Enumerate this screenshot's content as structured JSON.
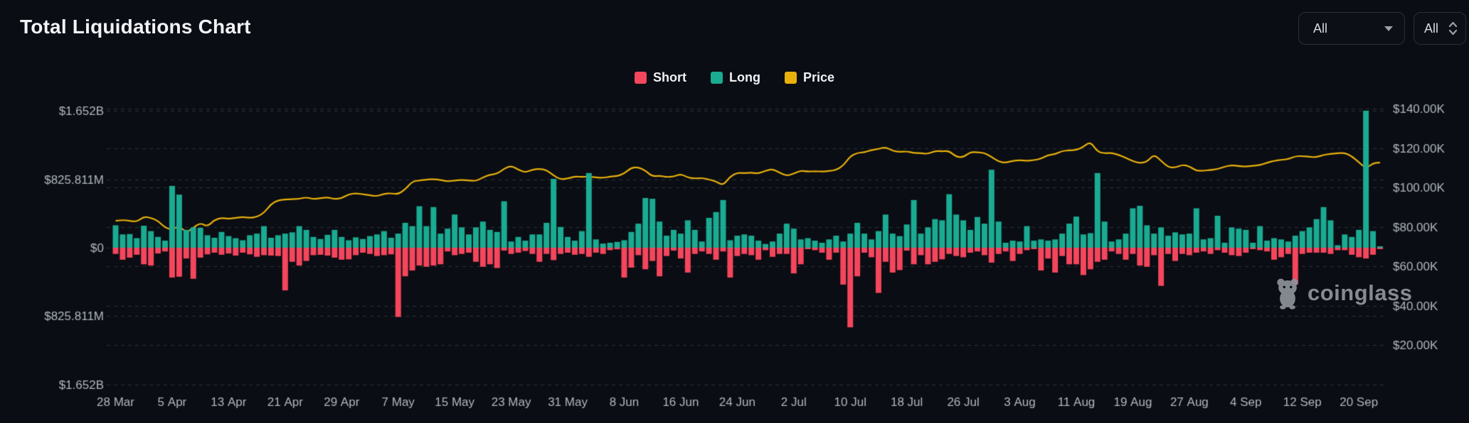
{
  "header": {
    "title": "Total Liquidations Chart"
  },
  "filters": {
    "pair": {
      "value": "All"
    },
    "exchange": {
      "value": "All"
    }
  },
  "legend": [
    {
      "label": "Short",
      "color": "#f4465d"
    },
    {
      "label": "Long",
      "color": "#1aab92"
    },
    {
      "label": "Price",
      "color": "#e9b10c"
    }
  ],
  "watermark": {
    "text": "coinglass"
  },
  "chart_data": {
    "type": "bar",
    "title": "Total Liquidations Chart",
    "subtype": "diverging bars with overlay line",
    "grid": "dashed horizontal, both axes",
    "legend_position": "top-center",
    "x_start_label": "28 Mar",
    "x_tick_every_days": 8,
    "x_tick_labels": [
      "28 Mar",
      "5 Apr",
      "13 Apr",
      "21 Apr",
      "29 Apr",
      "7 May",
      "15 May",
      "23 May",
      "31 May",
      "8 Jun",
      "16 Jun",
      "24 Jun",
      "2 Jul",
      "10 Jul",
      "18 Jul",
      "26 Jul",
      "3 Aug",
      "11 Aug",
      "19 Aug",
      "27 Aug",
      "4 Sep",
      "12 Sep",
      "20 Sep"
    ],
    "left_axis": {
      "title": "Liquidations (USD)",
      "labels": [
        "$1.652B",
        "$825.811M",
        "$0",
        "$825.811M",
        "$1.652B"
      ],
      "values_usd_m": [
        1652,
        825.811,
        0,
        -825.811,
        -1652
      ]
    },
    "right_axis": {
      "title": "Price (USD)",
      "labels": [
        "$140.00K",
        "$120.00K",
        "$100.00K",
        "$80.00K",
        "$60.00K",
        "$40.00K",
        "$20.00K"
      ],
      "values_usd_k": [
        140,
        120,
        100,
        80,
        60,
        40,
        20
      ]
    },
    "series": [
      {
        "name": "Long",
        "type": "bar",
        "direction": "up",
        "color": "#1aab92",
        "unit": "USD millions",
        "values": [
          270,
          160,
          165,
          115,
          265,
          200,
          130,
          85,
          745,
          640,
          215,
          245,
          240,
          150,
          120,
          190,
          140,
          115,
          90,
          150,
          170,
          260,
          120,
          150,
          170,
          185,
          260,
          215,
          130,
          105,
          155,
          215,
          130,
          90,
          125,
          105,
          140,
          160,
          200,
          120,
          170,
          300,
          260,
          500,
          260,
          490,
          170,
          230,
          400,
          245,
          160,
          245,
          315,
          215,
          190,
          560,
          75,
          130,
          85,
          160,
          160,
          300,
          830,
          250,
          130,
          85,
          200,
          900,
          100,
          50,
          60,
          70,
          90,
          190,
          290,
          600,
          590,
          315,
          145,
          215,
          170,
          330,
          215,
          75,
          360,
          430,
          575,
          90,
          145,
          160,
          145,
          85,
          45,
          75,
          170,
          290,
          230,
          100,
          115,
          85,
          60,
          100,
          145,
          75,
          170,
          300,
          170,
          100,
          200,
          400,
          170,
          140,
          280,
          575,
          170,
          245,
          345,
          330,
          645,
          400,
          330,
          215,
          370,
          290,
          940,
          315,
          60,
          85,
          75,
          260,
          85,
          100,
          85,
          100,
          170,
          290,
          375,
          160,
          175,
          900,
          315,
          75,
          100,
          170,
          475,
          505,
          270,
          170,
          245,
          145,
          185,
          160,
          170,
          475,
          100,
          115,
          385,
          60,
          245,
          230,
          215,
          60,
          260,
          85,
          115,
          100,
          75,
          145,
          200,
          245,
          345,
          490,
          330,
          30,
          160,
          130,
          215,
          1652,
          200,
          8
        ]
      },
      {
        "name": "Short",
        "type": "bar",
        "direction": "down",
        "color": "#f4465d",
        "unit": "USD millions",
        "values": [
          75,
          145,
          120,
          85,
          200,
          215,
          70,
          45,
          360,
          350,
          130,
          375,
          120,
          80,
          60,
          85,
          70,
          95,
          60,
          80,
          110,
          90,
          95,
          100,
          515,
          170,
          215,
          160,
          90,
          85,
          95,
          120,
          145,
          140,
          90,
          60,
          75,
          100,
          90,
          80,
          835,
          345,
          275,
          215,
          230,
          215,
          200,
          45,
          90,
          75,
          60,
          170,
          230,
          200,
          245,
          35,
          75,
          60,
          40,
          75,
          170,
          75,
          150,
          75,
          60,
          85,
          75,
          110,
          60,
          75,
          30,
          20,
          360,
          240,
          90,
          260,
          160,
          345,
          100,
          35,
          130,
          300,
          75,
          45,
          75,
          145,
          45,
          360,
          100,
          75,
          90,
          145,
          30,
          110,
          75,
          75,
          310,
          200,
          15,
          30,
          60,
          145,
          60,
          445,
          960,
          345,
          60,
          115,
          545,
          170,
          300,
          270,
          35,
          200,
          90,
          200,
          170,
          140,
          75,
          100,
          115,
          60,
          45,
          90,
          180,
          75,
          45,
          160,
          75,
          30,
          15,
          275,
          130,
          300,
          100,
          200,
          200,
          330,
          260,
          170,
          145,
          45,
          75,
          145,
          75,
          215,
          230,
          90,
          460,
          75,
          160,
          75,
          90,
          60,
          45,
          75,
          30,
          60,
          90,
          100,
          60,
          15,
          30,
          45,
          145,
          115,
          75,
          440,
          75,
          60,
          60,
          60,
          75,
          30,
          30,
          85,
          115,
          130,
          85,
          6
        ]
      },
      {
        "name": "Price",
        "type": "line",
        "color": "#e9b10c",
        "unit": "USD thousands",
        "values": [
          83,
          83.5,
          83,
          82.5,
          85.2,
          84.5,
          83,
          79.5,
          78.5,
          80.5,
          77,
          79.5,
          82,
          80,
          83.5,
          84.5,
          84,
          84.5,
          85,
          84.5,
          85,
          87,
          91.5,
          93.5,
          93.8,
          94,
          94.2,
          95,
          94,
          94.5,
          95,
          94,
          94.5,
          96.5,
          97,
          96.5,
          96,
          95.5,
          96.8,
          97,
          96.5,
          99,
          103,
          103.5,
          104,
          104.2,
          103.8,
          103,
          103.5,
          103.8,
          103.5,
          103.2,
          105,
          106.5,
          106.8,
          109.5,
          111,
          109,
          107.5,
          109,
          109.5,
          108.8,
          106,
          104,
          104.5,
          105.5,
          105.3,
          105.5,
          105,
          104.8,
          105.5,
          105.7,
          107,
          110,
          110.2,
          108.5,
          105.5,
          106,
          105.2,
          105.5,
          106.8,
          105,
          104.5,
          104.8,
          104,
          103,
          101,
          105.5,
          107.5,
          107.2,
          107.5,
          107,
          108.5,
          109.3,
          107.5,
          105.8,
          107,
          108.5,
          108,
          108.2,
          108,
          108.3,
          108.8,
          111,
          115.8,
          117.5,
          117.8,
          119,
          119.5,
          120.5,
          118.5,
          118,
          118.3,
          117.5,
          117.3,
          117,
          118.5,
          118.3,
          118.5,
          115.5,
          115.2,
          118,
          117.8,
          117.5,
          115.5,
          113,
          112.5,
          113.5,
          113.8,
          113.5,
          113.8,
          114.5,
          116.5,
          116.8,
          118.5,
          118.8,
          119,
          120.5,
          123.3,
          118,
          117.3,
          117.5,
          116.5,
          115,
          113.3,
          112.3,
          113,
          116.8,
          113.5,
          110.3,
          110,
          111.5,
          110.8,
          108.3,
          108.5,
          108.8,
          109.3,
          110.5,
          111.3,
          110.8,
          110.5,
          111,
          111.3,
          112.5,
          113.5,
          114,
          114.3,
          115.8,
          115.9,
          115.5,
          115.3,
          116.5,
          117,
          117.3,
          117.5,
          115.8,
          112.8,
          109.5,
          112.3,
          112.6
        ]
      }
    ]
  }
}
